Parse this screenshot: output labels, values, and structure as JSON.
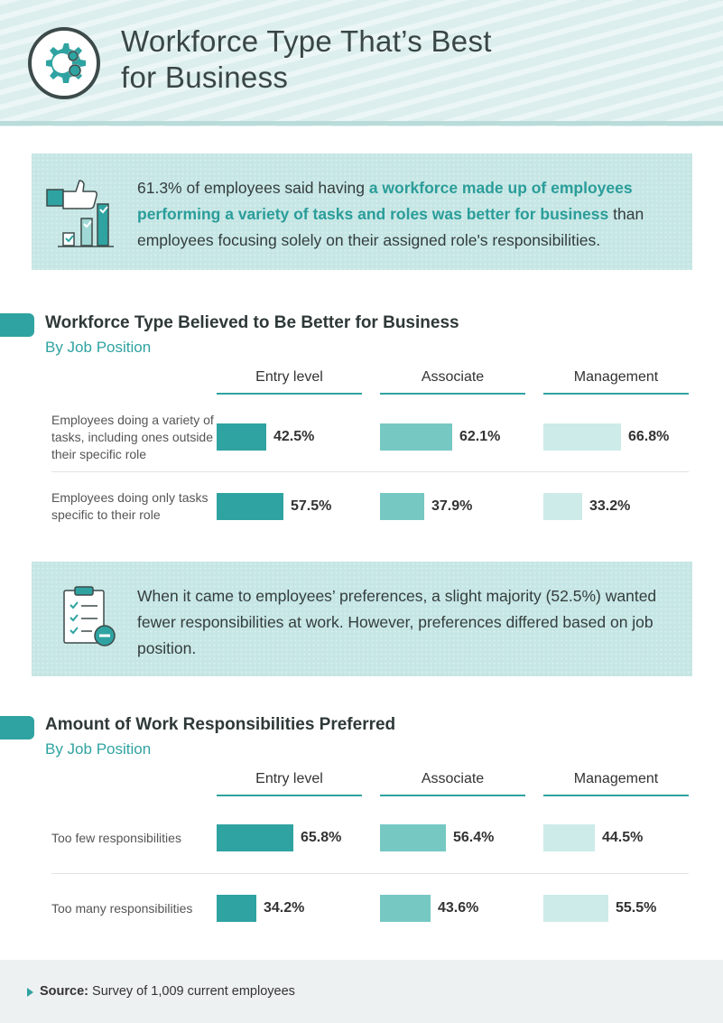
{
  "header": {
    "title_line1": "Workforce Type That’s Best",
    "title_line2": "for Business"
  },
  "callout1": {
    "text_pre": "61.3% of employees said having ",
    "text_highlight": "a workforce made up of employees performing a variety of tasks and roles was better for business",
    "text_post": " than employees focusing solely on their assigned role's responsibilities."
  },
  "callout2": {
    "text": "When it came to employees’ preferences, a slight majority (52.5%) wanted fewer responsibilities at work. However, preferences differed based on job position."
  },
  "colors": {
    "entry": "#2fa3a1",
    "associate": "#76c8c3",
    "management": "#cdebe9",
    "accent": "#2fa3a1"
  },
  "chart_data": [
    {
      "type": "bar",
      "title": "Workforce Type Believed to Be Better for Business",
      "subtitle": "By Job Position",
      "groups": [
        "Entry level",
        "Associate",
        "Management"
      ],
      "categories": [
        "Employees doing a variety of tasks, including ones outside their specific role",
        "Employees doing only tasks specific to their role"
      ],
      "series": [
        {
          "name": "Entry level",
          "values": [
            42.5,
            57.5
          ]
        },
        {
          "name": "Associate",
          "values": [
            62.1,
            37.9
          ]
        },
        {
          "name": "Management",
          "values": [
            66.8,
            33.2
          ]
        }
      ],
      "value_suffix": "%",
      "ylim": [
        0,
        100
      ]
    },
    {
      "type": "bar",
      "title": "Amount of Work Responsibilities Preferred",
      "subtitle": "By Job Position",
      "groups": [
        "Entry level",
        "Associate",
        "Management"
      ],
      "categories": [
        "Too few responsibilities",
        "Too many responsibilities"
      ],
      "series": [
        {
          "name": "Entry level",
          "values": [
            65.8,
            34.2
          ]
        },
        {
          "name": "Associate",
          "values": [
            56.4,
            43.6
          ]
        },
        {
          "name": "Management",
          "values": [
            44.5,
            55.5
          ]
        }
      ],
      "value_suffix": "%",
      "ylim": [
        0,
        100
      ]
    }
  ],
  "source": {
    "label": "Source:",
    "text": " Survey of 1,009 current employees"
  }
}
